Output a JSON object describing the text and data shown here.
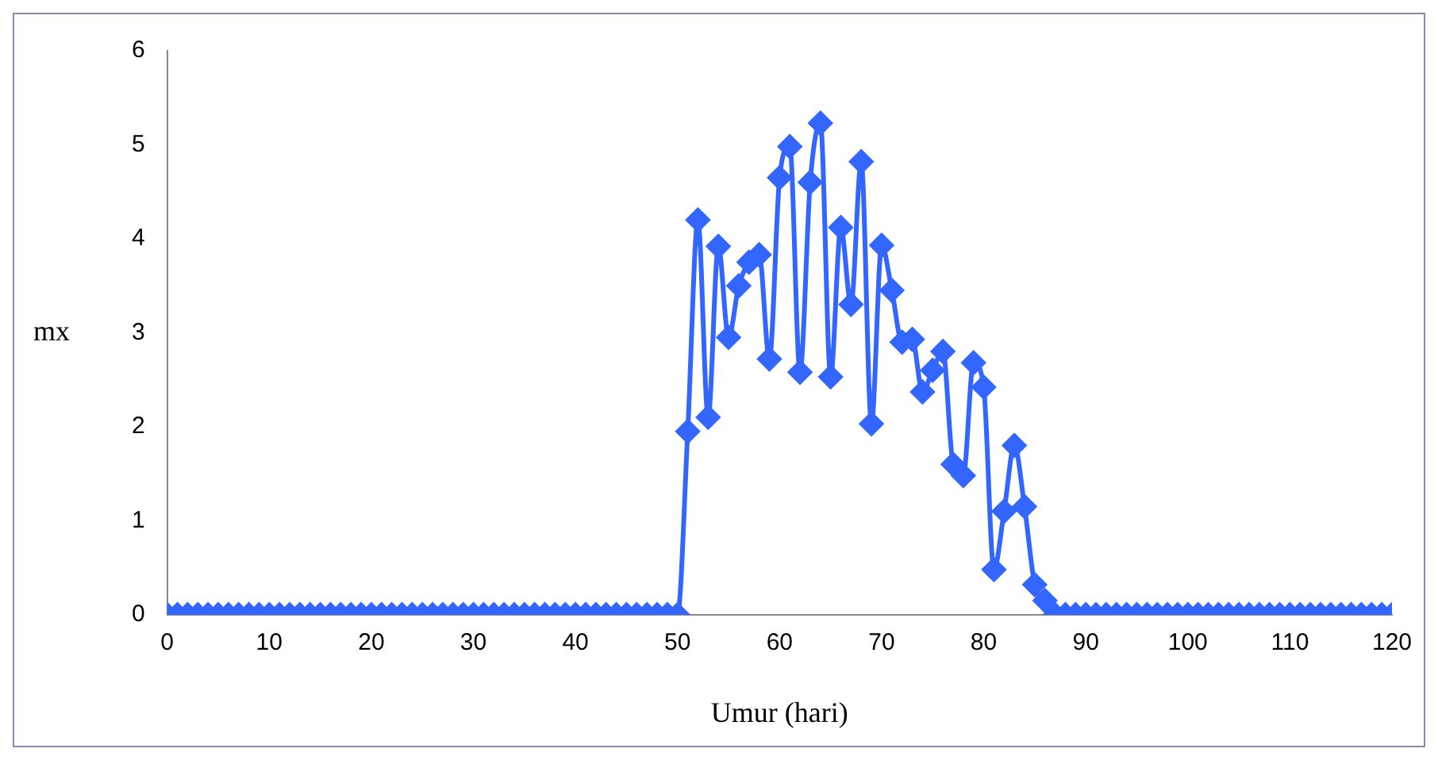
{
  "chart_data": {
    "type": "line",
    "xlabel": "Umur (hari)",
    "ylabel": "mx",
    "x": [
      0,
      1,
      2,
      3,
      4,
      5,
      6,
      7,
      8,
      9,
      10,
      11,
      12,
      13,
      14,
      15,
      16,
      17,
      18,
      19,
      20,
      21,
      22,
      23,
      24,
      25,
      26,
      27,
      28,
      29,
      30,
      31,
      32,
      33,
      34,
      35,
      36,
      37,
      38,
      39,
      40,
      41,
      42,
      43,
      44,
      45,
      46,
      47,
      48,
      49,
      50,
      51,
      52,
      53,
      54,
      55,
      56,
      57,
      58,
      59,
      60,
      61,
      62,
      63,
      64,
      65,
      66,
      67,
      68,
      69,
      70,
      71,
      72,
      73,
      74,
      75,
      76,
      77,
      78,
      79,
      80,
      81,
      82,
      83,
      84,
      85,
      86,
      87,
      88,
      89,
      90,
      91,
      92,
      93,
      94,
      95,
      96,
      97,
      98,
      99,
      100,
      101,
      102,
      103,
      104,
      105,
      106,
      107,
      108,
      109,
      110,
      111,
      112,
      113,
      114,
      115,
      116,
      117,
      118,
      119,
      120
    ],
    "series": [
      {
        "color": "#3366ff",
        "values": [
          0,
          0,
          0,
          0,
          0,
          0,
          0,
          0,
          0,
          0,
          0,
          0,
          0,
          0,
          0,
          0,
          0,
          0,
          0,
          0,
          0,
          0,
          0,
          0,
          0,
          0,
          0,
          0,
          0,
          0,
          0,
          0,
          0,
          0,
          0,
          0,
          0,
          0,
          0,
          0,
          0,
          0,
          0,
          0,
          0,
          0,
          0,
          0,
          0,
          0,
          0,
          1.95,
          4.2,
          2.1,
          3.92,
          2.95,
          3.5,
          3.75,
          3.83,
          2.72,
          4.65,
          4.98,
          2.58,
          4.6,
          5.23,
          2.53,
          4.12,
          3.3,
          4.82,
          2.03,
          3.93,
          3.45,
          2.9,
          2.93,
          2.37,
          2.6,
          2.8,
          1.6,
          1.48,
          2.68,
          2.42,
          0.48,
          1.1,
          1.8,
          1.15,
          0.32,
          0.15,
          0,
          0,
          0,
          0,
          0,
          0,
          0,
          0,
          0,
          0,
          0,
          0,
          0,
          0,
          0,
          0,
          0,
          0,
          0,
          0,
          0,
          0,
          0,
          0,
          0,
          0,
          0,
          0,
          0,
          0,
          0,
          0,
          0,
          0
        ]
      }
    ],
    "xlim": [
      0,
      120
    ],
    "xticks": [
      0,
      10,
      20,
      30,
      40,
      50,
      60,
      70,
      80,
      90,
      100,
      110,
      120
    ],
    "ylim": [
      0,
      6
    ],
    "yticks": [
      0,
      1,
      2,
      3,
      4,
      5,
      6
    ],
    "grid": false,
    "legend": false,
    "marker": "diamond",
    "line_style": "solid"
  }
}
